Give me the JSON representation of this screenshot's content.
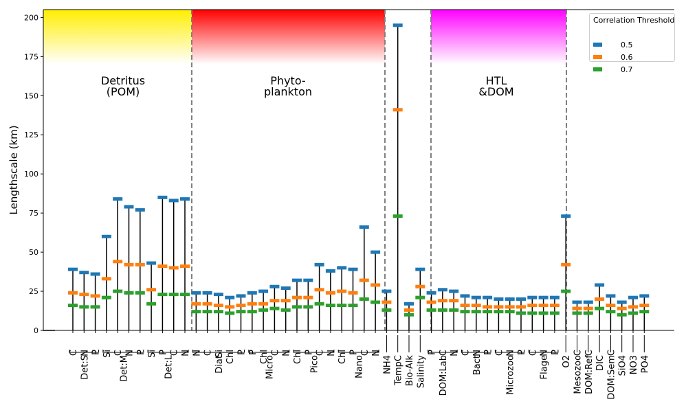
{
  "chart_data": {
    "type": "scatter",
    "title": "",
    "xlabel": "",
    "ylabel": "Lengthscale (km)",
    "ylim": [
      0,
      205
    ],
    "yticks": [
      0,
      25,
      50,
      75,
      100,
      125,
      150,
      175,
      200
    ],
    "grid": false,
    "legend": {
      "title": "Correlation Threshold",
      "placement": "top-right",
      "entries": [
        "0.5",
        "0.6",
        "0.7"
      ]
    },
    "groups": [
      {
        "name": "Detritus\n(POM)",
        "color": "#ffee00"
      },
      {
        "name": "Phyto-\nplankton",
        "color": "#ff0000"
      },
      {
        "name": "",
        "color": ""
      },
      {
        "name": "HTL\n&DOM",
        "color": "#ff00ff"
      },
      {
        "name": "",
        "color": ""
      }
    ],
    "categories": [
      {
        "var": "Det:S",
        "sub": "C",
        "t05": 39,
        "t06": 24,
        "t07": 16
      },
      {
        "var": "Det:S",
        "sub": "N",
        "t05": 37,
        "t06": 23,
        "t07": 15
      },
      {
        "var": "Det:S",
        "sub": "P",
        "t05": 36,
        "t06": 22,
        "t07": 15
      },
      {
        "var": "Det:M",
        "sub": "Si",
        "t05": 60,
        "t06": 33,
        "t07": 21
      },
      {
        "var": "Det:M",
        "sub": "C",
        "t05": 84,
        "t06": 44,
        "t07": 25
      },
      {
        "var": "Det:M",
        "sub": "N",
        "t05": 79,
        "t06": 42,
        "t07": 24
      },
      {
        "var": "Det:M",
        "sub": "P",
        "t05": 77,
        "t06": 42,
        "t07": 24
      },
      {
        "var": "Det:L",
        "sub": "Si",
        "t05": 43,
        "t06": 26,
        "t07": 17
      },
      {
        "var": "Det:L",
        "sub": "P",
        "t05": 85,
        "t06": 41,
        "t07": 23
      },
      {
        "var": "Det:L",
        "sub": "C",
        "t05": 83,
        "t06": 40,
        "t07": 23
      },
      {
        "var": "Det:L",
        "sub": "N",
        "t05": 84,
        "t06": 41,
        "t07": 23
      },
      {
        "var": "Diat",
        "sub": "N",
        "t05": 24,
        "t06": 17,
        "t07": 12
      },
      {
        "var": "Diat",
        "sub": "C",
        "t05": 24,
        "t06": 17,
        "t07": 12
      },
      {
        "var": "Diat",
        "sub": "Si",
        "t05": 23,
        "t06": 16,
        "t07": 12
      },
      {
        "var": "Diat",
        "sub": "Chl",
        "t05": 21,
        "t06": 15,
        "t07": 11
      },
      {
        "var": "Diat",
        "sub": "P",
        "t05": 22,
        "t06": 16,
        "t07": 12
      },
      {
        "var": "Micro",
        "sub": "P",
        "t05": 24,
        "t06": 17,
        "t07": 12
      },
      {
        "var": "Micro",
        "sub": "Chl",
        "t05": 25,
        "t06": 17,
        "t07": 13
      },
      {
        "var": "Micro",
        "sub": "C",
        "t05": 28,
        "t06": 19,
        "t07": 14
      },
      {
        "var": "Micro",
        "sub": "N",
        "t05": 27,
        "t06": 19,
        "t07": 13
      },
      {
        "var": "Pico",
        "sub": "Chl",
        "t05": 32,
        "t06": 21,
        "t07": 15
      },
      {
        "var": "Pico",
        "sub": "P",
        "t05": 32,
        "t06": 21,
        "t07": 15
      },
      {
        "var": "Pico",
        "sub": "C",
        "t05": 42,
        "t06": 26,
        "t07": 17
      },
      {
        "var": "Pico",
        "sub": "N",
        "t05": 38,
        "t06": 24,
        "t07": 16
      },
      {
        "var": "Nano",
        "sub": "Chl",
        "t05": 40,
        "t06": 25,
        "t07": 16
      },
      {
        "var": "Nano",
        "sub": "P",
        "t05": 39,
        "t06": 24,
        "t07": 16
      },
      {
        "var": "Nano",
        "sub": "C",
        "t05": 66,
        "t06": 32,
        "t07": 20
      },
      {
        "var": "Nano",
        "sub": "N",
        "t05": 50,
        "t06": 29,
        "t07": 18
      },
      {
        "var": "NH4",
        "sub": "",
        "t05": 25,
        "t06": 18,
        "t07": 13
      },
      {
        "var": "TempC",
        "sub": "",
        "t05": 195,
        "t06": 141,
        "t07": 73
      },
      {
        "var": "Bio-Alk",
        "sub": "",
        "t05": 17,
        "t06": 13,
        "t07": 10
      },
      {
        "var": "Salinity",
        "sub": "",
        "t05": 39,
        "t06": 28,
        "t07": 21
      },
      {
        "var": "DOM:Lab",
        "sub": "P",
        "t05": 24,
        "t06": 18,
        "t07": 13
      },
      {
        "var": "DOM:Lab",
        "sub": "C",
        "t05": 26,
        "t06": 19,
        "t07": 13
      },
      {
        "var": "DOM:Lab",
        "sub": "N",
        "t05": 25,
        "t06": 19,
        "t07": 13
      },
      {
        "var": "Bact",
        "sub": "C",
        "t05": 22,
        "t06": 16,
        "t07": 12
      },
      {
        "var": "Bact",
        "sub": "N",
        "t05": 21,
        "t06": 16,
        "t07": 12
      },
      {
        "var": "Bact",
        "sub": "P",
        "t05": 21,
        "t06": 15,
        "t07": 12
      },
      {
        "var": "Microzoo",
        "sub": "C",
        "t05": 20,
        "t06": 15,
        "t07": 12
      },
      {
        "var": "Microzoo",
        "sub": "N",
        "t05": 20,
        "t06": 15,
        "t07": 12
      },
      {
        "var": "Microzoo",
        "sub": "P",
        "t05": 20,
        "t06": 15,
        "t07": 11
      },
      {
        "var": "Flage",
        "sub": "C",
        "t05": 21,
        "t06": 16,
        "t07": 11
      },
      {
        "var": "Flage",
        "sub": "N",
        "t05": 21,
        "t06": 16,
        "t07": 11
      },
      {
        "var": "Flage",
        "sub": "P",
        "t05": 21,
        "t06": 16,
        "t07": 11
      },
      {
        "var": "O2",
        "sub": "",
        "t05": 73,
        "t06": 42,
        "t07": 25
      },
      {
        "var": "Mesozoo",
        "sub": "C",
        "t05": 18,
        "t06": 14,
        "t07": 11
      },
      {
        "var": "DOM:Ref",
        "sub": "C",
        "t05": 18,
        "t06": 14,
        "t07": 11
      },
      {
        "var": "DIC",
        "sub": "",
        "t05": 29,
        "t06": 20,
        "t07": 14
      },
      {
        "var": "DOM:Sem",
        "sub": "C",
        "t05": 22,
        "t06": 16,
        "t07": 12
      },
      {
        "var": "SiO4",
        "sub": "",
        "t05": 18,
        "t06": 14,
        "t07": 10
      },
      {
        "var": "NO3",
        "sub": "",
        "t05": 21,
        "t06": 15,
        "t07": 11
      },
      {
        "var": "PO4",
        "sub": "",
        "t05": 22,
        "t06": 16,
        "t07": 12
      }
    ],
    "series": [
      {
        "name": "0.5",
        "key": "t05",
        "color": "#1f77b4"
      },
      {
        "name": "0.6",
        "key": "t06",
        "color": "#ff7f0e"
      },
      {
        "name": "0.7",
        "key": "t07",
        "color": "#2ca02c"
      }
    ],
    "variable_groups": [
      {
        "label": "Det:S",
        "start": 0,
        "end": 2
      },
      {
        "label": "Det:M",
        "start": 3,
        "end": 6
      },
      {
        "label": "Det:L",
        "start": 7,
        "end": 10
      },
      {
        "label": "Diat",
        "start": 11,
        "end": 15
      },
      {
        "label": "Micro",
        "start": 16,
        "end": 19
      },
      {
        "label": "Pico",
        "start": 20,
        "end": 23
      },
      {
        "label": "Nano",
        "start": 24,
        "end": 27
      },
      {
        "label": "NH4",
        "start": 28,
        "end": 28
      },
      {
        "label": "TempC",
        "start": 29,
        "end": 29
      },
      {
        "label": "Bio-Alk",
        "start": 30,
        "end": 30
      },
      {
        "label": "Salinity",
        "start": 31,
        "end": 31
      },
      {
        "label": "DOM:Lab",
        "start": 32,
        "end": 34
      },
      {
        "label": "Bact",
        "start": 35,
        "end": 37
      },
      {
        "label": "Microzoo",
        "start": 38,
        "end": 40
      },
      {
        "label": "Flage",
        "start": 41,
        "end": 43
      },
      {
        "label": "O2",
        "start": 44,
        "end": 44
      },
      {
        "label": "Mesozoo",
        "start": 45,
        "end": 45
      },
      {
        "label": "DOM:Ref",
        "start": 46,
        "end": 46
      },
      {
        "label": "DIC",
        "start": 47,
        "end": 47
      },
      {
        "label": "DOM:Sem",
        "start": 48,
        "end": 48
      },
      {
        "label": "SiO4",
        "start": 49,
        "end": 49
      },
      {
        "label": "NO3",
        "start": 50,
        "end": 50
      },
      {
        "label": "PO4",
        "start": 51,
        "end": 51
      }
    ]
  }
}
